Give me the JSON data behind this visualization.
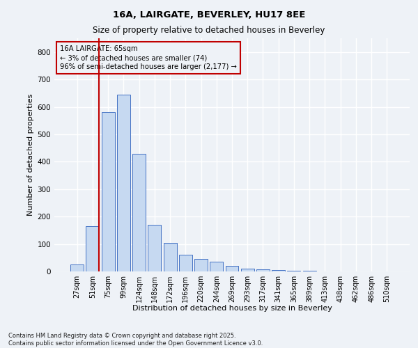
{
  "title1": "16A, LAIRGATE, BEVERLEY, HU17 8EE",
  "title2": "Size of property relative to detached houses in Beverley",
  "xlabel": "Distribution of detached houses by size in Beverley",
  "ylabel": "Number of detached properties",
  "categories": [
    "27sqm",
    "51sqm",
    "75sqm",
    "99sqm",
    "124sqm",
    "148sqm",
    "172sqm",
    "196sqm",
    "220sqm",
    "244sqm",
    "269sqm",
    "293sqm",
    "317sqm",
    "341sqm",
    "365sqm",
    "389sqm",
    "413sqm",
    "438sqm",
    "462sqm",
    "486sqm",
    "510sqm"
  ],
  "values": [
    25,
    165,
    580,
    645,
    430,
    170,
    105,
    60,
    45,
    35,
    20,
    10,
    8,
    5,
    3,
    2,
    1,
    1,
    1,
    0,
    1
  ],
  "bar_color": "#c6d9f1",
  "bar_edge_color": "#4472c4",
  "vline_x": 1.42,
  "vline_color": "#c00000",
  "annotation_title": "16A LAIRGATE: 65sqm",
  "annotation_line1": "← 3% of detached houses are smaller (74)",
  "annotation_line2": "96% of semi-detached houses are larger (2,177) →",
  "annotation_box_color": "#c00000",
  "footer1": "Contains HM Land Registry data © Crown copyright and database right 2025.",
  "footer2": "Contains public sector information licensed under the Open Government Licence v3.0.",
  "ylim": [
    0,
    850
  ],
  "yticks": [
    0,
    100,
    200,
    300,
    400,
    500,
    600,
    700,
    800
  ],
  "bg_color": "#eef2f7",
  "grid_color": "#ffffff"
}
